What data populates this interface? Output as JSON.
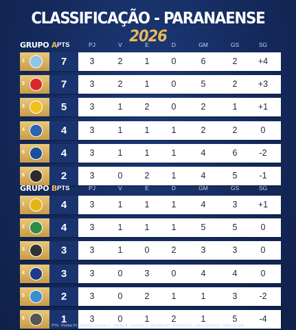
{
  "title": {
    "main": "CLASSIFICAÇÃO - PARANAENSE",
    "year": "2026"
  },
  "columns": [
    "PJ",
    "V",
    "E",
    "D",
    "GM",
    "GS",
    "SG"
  ],
  "pts_label": "PTS",
  "groups": [
    {
      "label": "GRUPO",
      "letter": "A",
      "rows": [
        {
          "pos": "1",
          "crest_color": "#8fc6e6",
          "pts": "7",
          "pj": "3",
          "v": "2",
          "e": "1",
          "d": "0",
          "gm": "6",
          "gs": "2",
          "sg": "+4"
        },
        {
          "pos": "2",
          "crest_color": "#d8282e",
          "pts": "7",
          "pj": "3",
          "v": "2",
          "e": "1",
          "d": "0",
          "gm": "5",
          "gs": "2",
          "sg": "+3"
        },
        {
          "pos": "3",
          "crest_color": "#f0c020",
          "pts": "5",
          "pj": "3",
          "v": "1",
          "e": "2",
          "d": "0",
          "gm": "2",
          "gs": "1",
          "sg": "+1"
        },
        {
          "pos": "4",
          "crest_color": "#2a63b0",
          "pts": "4",
          "pj": "3",
          "v": "1",
          "e": "1",
          "d": "1",
          "gm": "2",
          "gs": "2",
          "sg": "0"
        },
        {
          "pos": "5",
          "crest_color": "#1b4f9c",
          "pts": "4",
          "pj": "3",
          "v": "1",
          "e": "1",
          "d": "1",
          "gm": "4",
          "gs": "6",
          "sg": "-2"
        },
        {
          "pos": "6",
          "crest_color": "#2b2b2b",
          "pts": "2",
          "pj": "3",
          "v": "0",
          "e": "2",
          "d": "1",
          "gm": "4",
          "gs": "5",
          "sg": "-1"
        }
      ]
    },
    {
      "label": "GRUPO",
      "letter": "B",
      "rows": [
        {
          "pos": "1",
          "crest_color": "#e3b418",
          "pts": "4",
          "pj": "3",
          "v": "1",
          "e": "1",
          "d": "1",
          "gm": "4",
          "gs": "3",
          "sg": "+1"
        },
        {
          "pos": "2",
          "crest_color": "#2e8a4a",
          "pts": "4",
          "pj": "3",
          "v": "1",
          "e": "1",
          "d": "1",
          "gm": "5",
          "gs": "5",
          "sg": "0"
        },
        {
          "pos": "3",
          "crest_color": "#333333",
          "pts": "3",
          "pj": "3",
          "v": "1",
          "e": "0",
          "d": "2",
          "gm": "3",
          "gs": "3",
          "sg": "0"
        },
        {
          "pos": "4",
          "crest_color": "#1e3a8a",
          "pts": "3",
          "pj": "3",
          "v": "0",
          "e": "3",
          "d": "0",
          "gm": "4",
          "gs": "4",
          "sg": "0"
        },
        {
          "pos": "5",
          "crest_color": "#3a8ed0",
          "pts": "2",
          "pj": "3",
          "v": "0",
          "e": "2",
          "d": "1",
          "gm": "1",
          "gs": "3",
          "sg": "-2"
        },
        {
          "pos": "6",
          "crest_color": "#555555",
          "pts": "1",
          "pj": "3",
          "v": "0",
          "e": "1",
          "d": "2",
          "gm": "1",
          "gs": "5",
          "sg": "-4"
        }
      ]
    }
  ],
  "legend": "PTS - Pontos   PJ - Partidas Jogadas   V - Vitórias   E - Empates   D - Derrotas   GP - Gols Pró   GC - Gols Contra   SG - Saldo de Gols"
}
